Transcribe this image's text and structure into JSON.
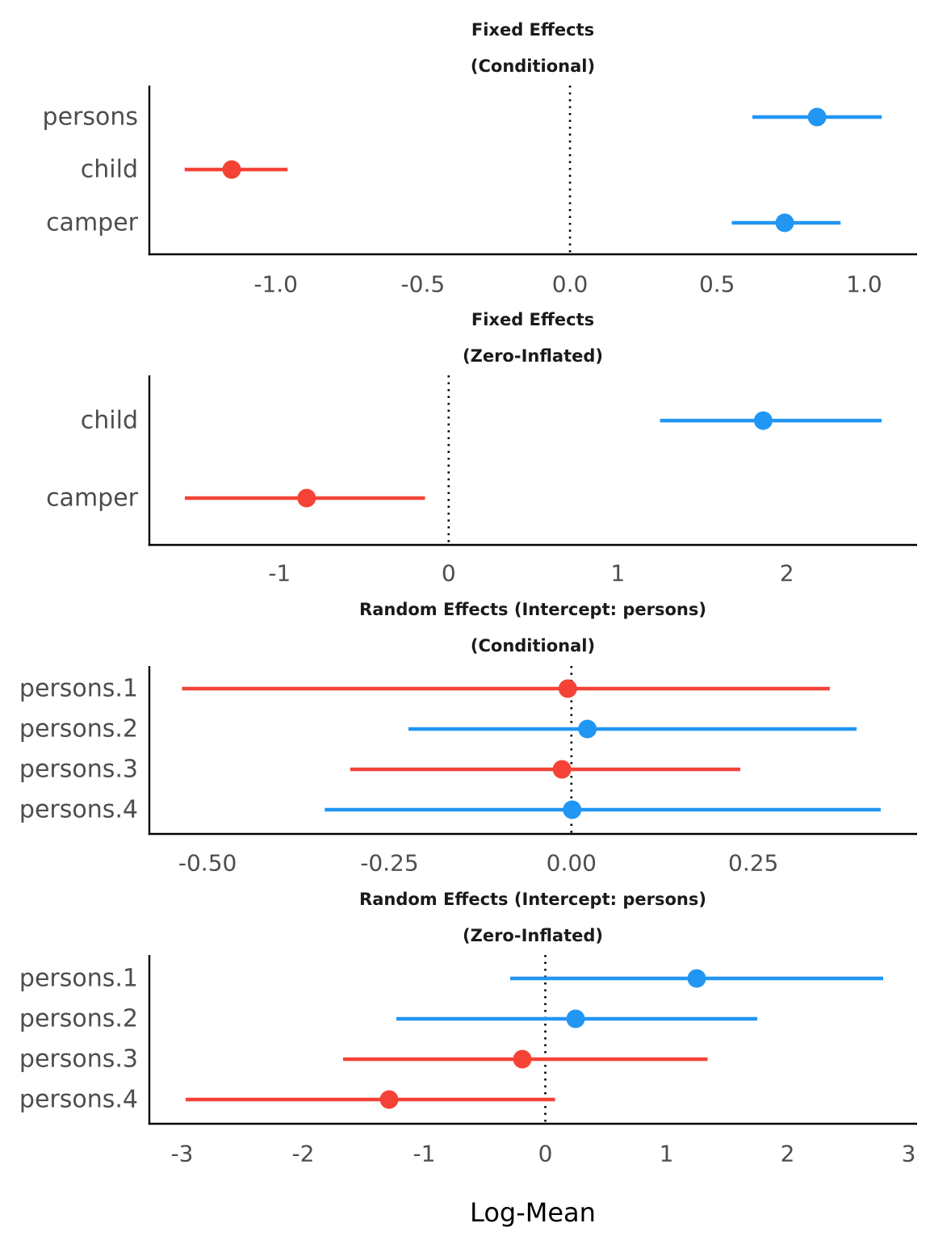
{
  "chart_data": [
    {
      "type": "forest",
      "title": [
        "Fixed Effects",
        "(Conditional)"
      ],
      "xlim": [
        -1.43,
        1.18
      ],
      "xticks": [
        -1.0,
        -0.5,
        0.0,
        0.5,
        1.0
      ],
      "xtick_labels": [
        "-1.0",
        "-0.5",
        "0.0",
        "0.5",
        "1.0"
      ],
      "reference_line": 0,
      "terms": [
        {
          "label": "persons",
          "estimate": 0.84,
          "low": 0.62,
          "high": 1.06,
          "direction": "positive"
        },
        {
          "label": "child",
          "estimate": -1.15,
          "low": -1.31,
          "high": -0.96,
          "direction": "negative"
        },
        {
          "label": "camper",
          "estimate": 0.73,
          "low": 0.55,
          "high": 0.92,
          "direction": "positive"
        }
      ]
    },
    {
      "type": "forest",
      "title": [
        "Fixed Effects",
        "(Zero-Inflated)"
      ],
      "xlim": [
        -1.77,
        2.77
      ],
      "xticks": [
        -1,
        0,
        1,
        2
      ],
      "xtick_labels": [
        "-1",
        "0",
        "1",
        "2"
      ],
      "reference_line": 0,
      "terms": [
        {
          "label": "child",
          "estimate": 1.86,
          "low": 1.25,
          "high": 2.56,
          "direction": "positive"
        },
        {
          "label": "camper",
          "estimate": -0.84,
          "low": -1.56,
          "high": -0.14,
          "direction": "negative"
        }
      ]
    },
    {
      "type": "forest",
      "title": [
        "Random Effects (Intercept: persons)",
        "(Conditional)"
      ],
      "xlim": [
        -0.58,
        0.475
      ],
      "xticks": [
        -0.5,
        -0.25,
        0.0,
        0.25
      ],
      "xtick_labels": [
        "-0.50",
        "-0.25",
        "0.00",
        "0.25"
      ],
      "reference_line": 0,
      "terms": [
        {
          "label": "persons.1",
          "estimate": -0.005,
          "low": -0.535,
          "high": 0.355,
          "direction": "negative"
        },
        {
          "label": "persons.2",
          "estimate": 0.022,
          "low": -0.224,
          "high": 0.392,
          "direction": "positive"
        },
        {
          "label": "persons.3",
          "estimate": -0.013,
          "low": -0.304,
          "high": 0.232,
          "direction": "negative"
        },
        {
          "label": "persons.4",
          "estimate": 0.001,
          "low": -0.339,
          "high": 0.425,
          "direction": "positive"
        }
      ]
    },
    {
      "type": "forest",
      "title": [
        "Random Effects (Intercept: persons)",
        "(Zero-Inflated)"
      ],
      "xlim": [
        -3.27,
        3.07
      ],
      "xticks": [
        -3,
        -2,
        -1,
        0,
        1,
        2,
        3
      ],
      "xtick_labels": [
        "-3",
        "-2",
        "-1",
        "0",
        "1",
        "2",
        "3"
      ],
      "reference_line": 0,
      "terms": [
        {
          "label": "persons.1",
          "estimate": 1.25,
          "low": -0.29,
          "high": 2.79,
          "direction": "positive"
        },
        {
          "label": "persons.2",
          "estimate": 0.25,
          "low": -1.23,
          "high": 1.75,
          "direction": "positive"
        },
        {
          "label": "persons.3",
          "estimate": -0.19,
          "low": -1.67,
          "high": 1.34,
          "direction": "negative"
        },
        {
          "label": "persons.4",
          "estimate": -1.29,
          "low": -2.97,
          "high": 0.08,
          "direction": "negative"
        }
      ]
    }
  ],
  "xlabel": "Log-Mean",
  "colors": {
    "positive": "#2196f3",
    "negative": "#f44336",
    "axis": "#000000",
    "text": "#4d4d4d"
  }
}
